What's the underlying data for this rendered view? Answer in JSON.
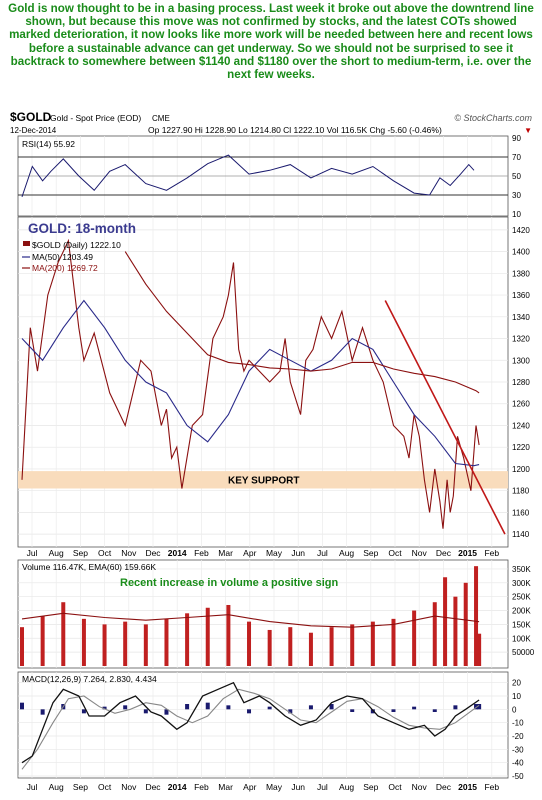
{
  "commentary": "Gold is now thought to be in a basing process. Last week it broke out above the downtrend line shown, but because this move was not confirmed by stocks, and the latest COTs showed marked deterioration, it now looks like more work will be needed between here and recent lows before a sustainable advance can get underway. So we should not be surprised to see it backtrack to somewhere between $1140 and $1180 over the short to medium-term, i.e. over the next few weeks.",
  "header": {
    "symbol": "$GOLD",
    "name": "Gold - Spot Price (EOD)",
    "exchange": "CME",
    "watermark": "© StockCharts.com",
    "date": "12-Dec-2014",
    "quote": "Op 1227.90 Hi 1228.90 Lo 1214.80 Cl 1222.10 Vol 116.5K Chg -5.60 (-0.46%)",
    "quote_marker": "▼"
  },
  "colors": {
    "price": "#8b1010",
    "ma50": "#2a2a8a",
    "ma200": "#8b1010",
    "trendline": "#c01818",
    "support_band": "#f9dcbc",
    "rsi": "#1a1a6e",
    "volume": "#c02020",
    "ema": "#8b1010",
    "macd": "#111111",
    "signal": "#888888",
    "histogram": "#1a1a6e",
    "annotation_blue": "#3b3b8f",
    "annotation_green": "#1a8c1a"
  },
  "chart_data": [
    {
      "type": "line",
      "panel": "RSI",
      "legend": "RSI(14) 55.92",
      "ylim": [
        10,
        90
      ],
      "yticks": [
        10,
        30,
        50,
        70,
        90
      ],
      "reference_lines": [
        30,
        50,
        70
      ],
      "series": [
        {
          "name": "RSI(14)",
          "x": [
            0,
            10,
            20,
            28,
            40,
            55,
            70,
            85,
            100,
            120,
            140,
            160,
            180,
            200,
            220,
            240,
            260,
            280,
            300,
            320,
            340,
            360,
            380,
            395,
            405,
            415,
            425,
            433,
            438
          ],
          "values": [
            28,
            60,
            45,
            55,
            68,
            50,
            35,
            55,
            62,
            42,
            35,
            48,
            63,
            72,
            52,
            56,
            62,
            48,
            58,
            52,
            60,
            45,
            32,
            30,
            48,
            40,
            52,
            62,
            56
          ]
        }
      ]
    },
    {
      "type": "line",
      "panel": "Price",
      "annotation": "GOLD: 18-month",
      "legend": [
        "$GOLD (Daily) 1222.10",
        "MA(50) 1203.49",
        "MA(200) 1269.72"
      ],
      "ylim": [
        1130,
        1430
      ],
      "yticks": [
        1140,
        1160,
        1180,
        1200,
        1220,
        1240,
        1260,
        1280,
        1300,
        1320,
        1340,
        1360,
        1380,
        1400,
        1420
      ],
      "x_ticks": [
        "Jul",
        "Aug",
        "Sep",
        "Oct",
        "Nov",
        "Dec",
        "2014",
        "Feb",
        "Mar",
        "Apr",
        "May",
        "Jun",
        "Jul",
        "Aug",
        "Sep",
        "Oct",
        "Nov",
        "Dec",
        "2015",
        "Feb"
      ],
      "support_band": {
        "label": "KEY SUPPORT",
        "range": [
          1182,
          1198
        ]
      },
      "trendline": {
        "from": [
          1318,
          1355
        ],
        "to": [
          1475,
          1140
        ]
      },
      "series": [
        {
          "name": "$GOLD (Daily)",
          "x": [
            0,
            8,
            15,
            25,
            35,
            45,
            55,
            60,
            70,
            85,
            100,
            115,
            125,
            135,
            140,
            145,
            150,
            155,
            165,
            175,
            185,
            195,
            200,
            205,
            210,
            215,
            220,
            230,
            240,
            250,
            255,
            260,
            270,
            275,
            282,
            290,
            300,
            310,
            320,
            330,
            340,
            350,
            360,
            370,
            375,
            380,
            385,
            390,
            395,
            400,
            405,
            408,
            412,
            415,
            418,
            422,
            428,
            435,
            440,
            443
          ],
          "values": [
            1190,
            1330,
            1290,
            1360,
            1390,
            1410,
            1330,
            1300,
            1325,
            1270,
            1240,
            1300,
            1290,
            1240,
            1255,
            1210,
            1220,
            1182,
            1240,
            1250,
            1320,
            1340,
            1360,
            1390,
            1310,
            1290,
            1300,
            1290,
            1280,
            1290,
            1320,
            1280,
            1250,
            1300,
            1310,
            1340,
            1320,
            1345,
            1300,
            1330,
            1300,
            1280,
            1240,
            1230,
            1210,
            1250,
            1230,
            1190,
            1160,
            1200,
            1170,
            1145,
            1190,
            1160,
            1175,
            1230,
            1210,
            1180,
            1240,
            1222
          ]
        },
        {
          "name": "MA(50)",
          "x": [
            0,
            20,
            40,
            60,
            80,
            100,
            120,
            140,
            160,
            180,
            200,
            220,
            240,
            260,
            280,
            300,
            320,
            340,
            360,
            380,
            400,
            420,
            438,
            443
          ],
          "values": [
            1320,
            1300,
            1330,
            1355,
            1330,
            1300,
            1280,
            1270,
            1240,
            1225,
            1250,
            1290,
            1310,
            1300,
            1290,
            1300,
            1320,
            1310,
            1280,
            1250,
            1230,
            1205,
            1203,
            1204
          ]
        },
        {
          "name": "MA(200)",
          "x": [
            100,
            120,
            140,
            160,
            180,
            200,
            220,
            240,
            260,
            280,
            300,
            320,
            340,
            360,
            380,
            400,
            420,
            440,
            443
          ],
          "values": [
            1400,
            1370,
            1345,
            1325,
            1305,
            1298,
            1296,
            1293,
            1292,
            1290,
            1292,
            1298,
            1298,
            1292,
            1288,
            1285,
            1280,
            1272,
            1270
          ]
        }
      ]
    },
    {
      "type": "bar",
      "panel": "Volume",
      "legend": "Volume 116.47K, EMA(60) 159.66K",
      "annotation": "Recent increase in volume a positive sign",
      "ylim": [
        0,
        375000
      ],
      "yticks": [
        50000,
        100000,
        150000,
        200000,
        250000,
        300000,
        350000
      ],
      "ytick_labels": [
        "50000",
        "100K",
        "150K",
        "200K",
        "250K",
        "300K",
        "350K"
      ],
      "series": [
        {
          "name": "Volume",
          "kind": "bars",
          "x": [
            0,
            20,
            40,
            60,
            80,
            100,
            120,
            140,
            160,
            180,
            200,
            220,
            240,
            260,
            280,
            300,
            320,
            340,
            360,
            380,
            400,
            410,
            420,
            430,
            440,
            443
          ],
          "values": [
            140000,
            180000,
            230000,
            170000,
            150000,
            160000,
            150000,
            170000,
            190000,
            210000,
            220000,
            160000,
            130000,
            140000,
            120000,
            140000,
            150000,
            160000,
            170000,
            200000,
            230000,
            320000,
            250000,
            300000,
            360000,
            116470
          ]
        },
        {
          "name": "EMA(60)",
          "kind": "line",
          "x": [
            0,
            40,
            80,
            120,
            160,
            200,
            240,
            280,
            320,
            360,
            400,
            443
          ],
          "values": [
            170000,
            190000,
            175000,
            165000,
            175000,
            185000,
            160000,
            145000,
            140000,
            150000,
            180000,
            159660
          ]
        }
      ]
    },
    {
      "type": "line",
      "panel": "MACD",
      "legend": "MACD(12,26,9) 7.264, 2.830, 4.434",
      "ylim": [
        -50,
        25
      ],
      "yticks": [
        -50,
        -40,
        -30,
        -20,
        -10,
        0,
        10,
        20
      ],
      "series": [
        {
          "name": "MACD",
          "x": [
            0,
            10,
            20,
            30,
            40,
            55,
            65,
            80,
            95,
            110,
            125,
            135,
            150,
            160,
            175,
            190,
            205,
            215,
            230,
            240,
            255,
            270,
            285,
            300,
            315,
            330,
            345,
            360,
            375,
            390,
            400,
            410,
            420,
            430,
            443
          ],
          "values": [
            -40,
            -35,
            -15,
            5,
            15,
            10,
            -5,
            -5,
            5,
            10,
            -2,
            -5,
            -15,
            -10,
            10,
            15,
            20,
            5,
            10,
            5,
            -5,
            -12,
            -8,
            5,
            10,
            8,
            -5,
            -10,
            -15,
            -12,
            -20,
            -15,
            -5,
            0,
            7
          ]
        },
        {
          "name": "Signal",
          "x": [
            0,
            15,
            30,
            45,
            60,
            75,
            90,
            105,
            120,
            135,
            150,
            165,
            180,
            195,
            210,
            225,
            240,
            255,
            270,
            285,
            300,
            315,
            330,
            345,
            360,
            375,
            390,
            405,
            420,
            443
          ],
          "values": [
            -45,
            -30,
            -10,
            8,
            10,
            2,
            -3,
            0,
            5,
            3,
            -5,
            -10,
            -5,
            8,
            15,
            12,
            8,
            0,
            -8,
            -10,
            -2,
            6,
            8,
            2,
            -6,
            -12,
            -14,
            -15,
            -10,
            3
          ]
        },
        {
          "name": "Histogram",
          "kind": "bars",
          "x": [
            0,
            20,
            40,
            60,
            80,
            100,
            120,
            140,
            160,
            180,
            200,
            220,
            240,
            260,
            280,
            300,
            320,
            340,
            360,
            380,
            400,
            420,
            440,
            443
          ],
          "values": [
            5,
            -4,
            4,
            -3,
            2,
            3,
            -3,
            -4,
            4,
            5,
            3,
            -3,
            2,
            -3,
            3,
            4,
            -2,
            -3,
            -2,
            2,
            -2,
            3,
            4,
            4
          ]
        }
      ]
    }
  ]
}
